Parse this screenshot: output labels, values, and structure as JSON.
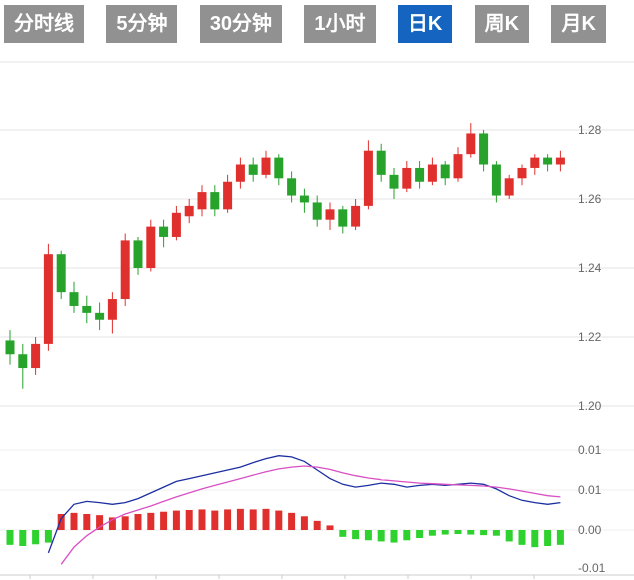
{
  "tabs": {
    "items": [
      {
        "name": "tab-time-line",
        "label": "分时线",
        "active": false
      },
      {
        "name": "tab-5min",
        "label": "5分钟",
        "active": false
      },
      {
        "name": "tab-30min",
        "label": "30分钟",
        "active": false
      },
      {
        "name": "tab-1hour",
        "label": "1小时",
        "active": false
      },
      {
        "name": "tab-daily-k",
        "label": "日K",
        "active": true
      },
      {
        "name": "tab-weekly-k",
        "label": "周K",
        "active": false
      },
      {
        "name": "tab-monthly-k",
        "label": "月K",
        "active": false
      }
    ],
    "active_bg": "#1565c0",
    "inactive_bg": "#919191",
    "text_color": "#ffffff"
  },
  "chart_data": {
    "type": "candlestick",
    "title": "",
    "price_axis": {
      "ticks": [
        "1.28",
        "1.26",
        "1.24",
        "1.22",
        "1.20"
      ],
      "values": [
        1.28,
        1.26,
        1.24,
        1.22,
        1.2
      ],
      "range": [
        1.195,
        1.3
      ]
    },
    "macd_axis": {
      "ticks": [
        "0.01",
        "0.01",
        "0.00",
        "-0.01"
      ]
    },
    "candles": [
      [
        1.219,
        1.222,
        1.212,
        1.215
      ],
      [
        1.215,
        1.218,
        1.205,
        1.211
      ],
      [
        1.211,
        1.22,
        1.209,
        1.218
      ],
      [
        1.218,
        1.247,
        1.216,
        1.244
      ],
      [
        1.244,
        1.245,
        1.231,
        1.233
      ],
      [
        1.233,
        1.236,
        1.227,
        1.229
      ],
      [
        1.229,
        1.232,
        1.224,
        1.227
      ],
      [
        1.227,
        1.23,
        1.222,
        1.225
      ],
      [
        1.225,
        1.233,
        1.221,
        1.231
      ],
      [
        1.231,
        1.25,
        1.229,
        1.248
      ],
      [
        1.248,
        1.249,
        1.238,
        1.24
      ],
      [
        1.24,
        1.254,
        1.239,
        1.252
      ],
      [
        1.252,
        1.254,
        1.246,
        1.249
      ],
      [
        1.249,
        1.258,
        1.248,
        1.256
      ],
      [
        1.255,
        1.26,
        1.253,
        1.258
      ],
      [
        1.257,
        1.264,
        1.255,
        1.262
      ],
      [
        1.262,
        1.264,
        1.255,
        1.257
      ],
      [
        1.257,
        1.267,
        1.256,
        1.265
      ],
      [
        1.265,
        1.272,
        1.263,
        1.27
      ],
      [
        1.27,
        1.272,
        1.265,
        1.267
      ],
      [
        1.267,
        1.274,
        1.266,
        1.272
      ],
      [
        1.272,
        1.273,
        1.264,
        1.266
      ],
      [
        1.266,
        1.268,
        1.259,
        1.261
      ],
      [
        1.261,
        1.263,
        1.256,
        1.259
      ],
      [
        1.259,
        1.261,
        1.252,
        1.254
      ],
      [
        1.254,
        1.259,
        1.251,
        1.257
      ],
      [
        1.257,
        1.258,
        1.25,
        1.252
      ],
      [
        1.252,
        1.26,
        1.251,
        1.258
      ],
      [
        1.258,
        1.277,
        1.257,
        1.274
      ],
      [
        1.274,
        1.276,
        1.265,
        1.267
      ],
      [
        1.267,
        1.269,
        1.26,
        1.263
      ],
      [
        1.263,
        1.271,
        1.262,
        1.269
      ],
      [
        1.269,
        1.271,
        1.263,
        1.265
      ],
      [
        1.265,
        1.272,
        1.264,
        1.27
      ],
      [
        1.27,
        1.271,
        1.264,
        1.266
      ],
      [
        1.266,
        1.275,
        1.265,
        1.273
      ],
      [
        1.273,
        1.282,
        1.272,
        1.279
      ],
      [
        1.279,
        1.28,
        1.268,
        1.27
      ],
      [
        1.27,
        1.271,
        1.259,
        1.261
      ],
      [
        1.261,
        1.267,
        1.26,
        1.266
      ],
      [
        1.266,
        1.27,
        1.264,
        1.269
      ],
      [
        1.269,
        1.273,
        1.267,
        1.272
      ],
      [
        1.272,
        1.273,
        1.268,
        1.27
      ],
      [
        1.27,
        1.274,
        1.268,
        1.272
      ]
    ],
    "macd": {
      "dif": [
        null,
        null,
        null,
        -0.004,
        0.002,
        0.0045,
        0.005,
        0.0048,
        0.0045,
        0.0048,
        0.0055,
        0.0065,
        0.0075,
        0.0085,
        0.009,
        0.0095,
        0.01,
        0.0105,
        0.011,
        0.0118,
        0.0125,
        0.013,
        0.0128,
        0.012,
        0.0105,
        0.009,
        0.008,
        0.0075,
        0.0078,
        0.0082,
        0.008,
        0.0075,
        0.0078,
        0.008,
        0.0078,
        0.008,
        0.0082,
        0.008,
        0.0072,
        0.006,
        0.0052,
        0.0048,
        0.0045,
        0.0048
      ],
      "dea": [
        null,
        null,
        null,
        null,
        -0.006,
        -0.003,
        -0.001,
        0.0005,
        0.0018,
        0.0028,
        0.0035,
        0.0042,
        0.005,
        0.0058,
        0.0065,
        0.0072,
        0.0078,
        0.0084,
        0.009,
        0.0096,
        0.0102,
        0.0107,
        0.011,
        0.0112,
        0.011,
        0.0106,
        0.01,
        0.0095,
        0.0091,
        0.0088,
        0.0086,
        0.0084,
        0.0082,
        0.0081,
        0.008,
        0.0079,
        0.0078,
        0.0077,
        0.0075,
        0.0072,
        0.0068,
        0.0064,
        0.006,
        0.0058
      ],
      "hist": [
        -0.0026,
        -0.0028,
        -0.0025,
        -0.0022,
        0.0028,
        0.003,
        0.0028,
        0.0026,
        0.0022,
        0.0024,
        0.0028,
        0.003,
        0.0032,
        0.0034,
        0.0035,
        0.0036,
        0.0034,
        0.0036,
        0.0037,
        0.0036,
        0.0037,
        0.0034,
        0.003,
        0.0024,
        0.0016,
        0.0008,
        -0.0012,
        -0.0016,
        -0.0018,
        -0.002,
        -0.0022,
        -0.0018,
        -0.0014,
        -0.001,
        -0.0008,
        -0.0007,
        -0.0008,
        -0.0009,
        -0.001,
        -0.002,
        -0.0026,
        -0.003,
        -0.0028,
        -0.0026
      ]
    },
    "colors": {
      "up": "#e0302e",
      "down": "#27a22b",
      "hist_up": "#e0302e",
      "hist_down": "#2ed12e",
      "dif_line": "#1c2fa0",
      "dea_line": "#d94fc4",
      "grid": "#e3e3e3",
      "axis_line": "#cccccc",
      "axis_text": "#666666"
    }
  }
}
